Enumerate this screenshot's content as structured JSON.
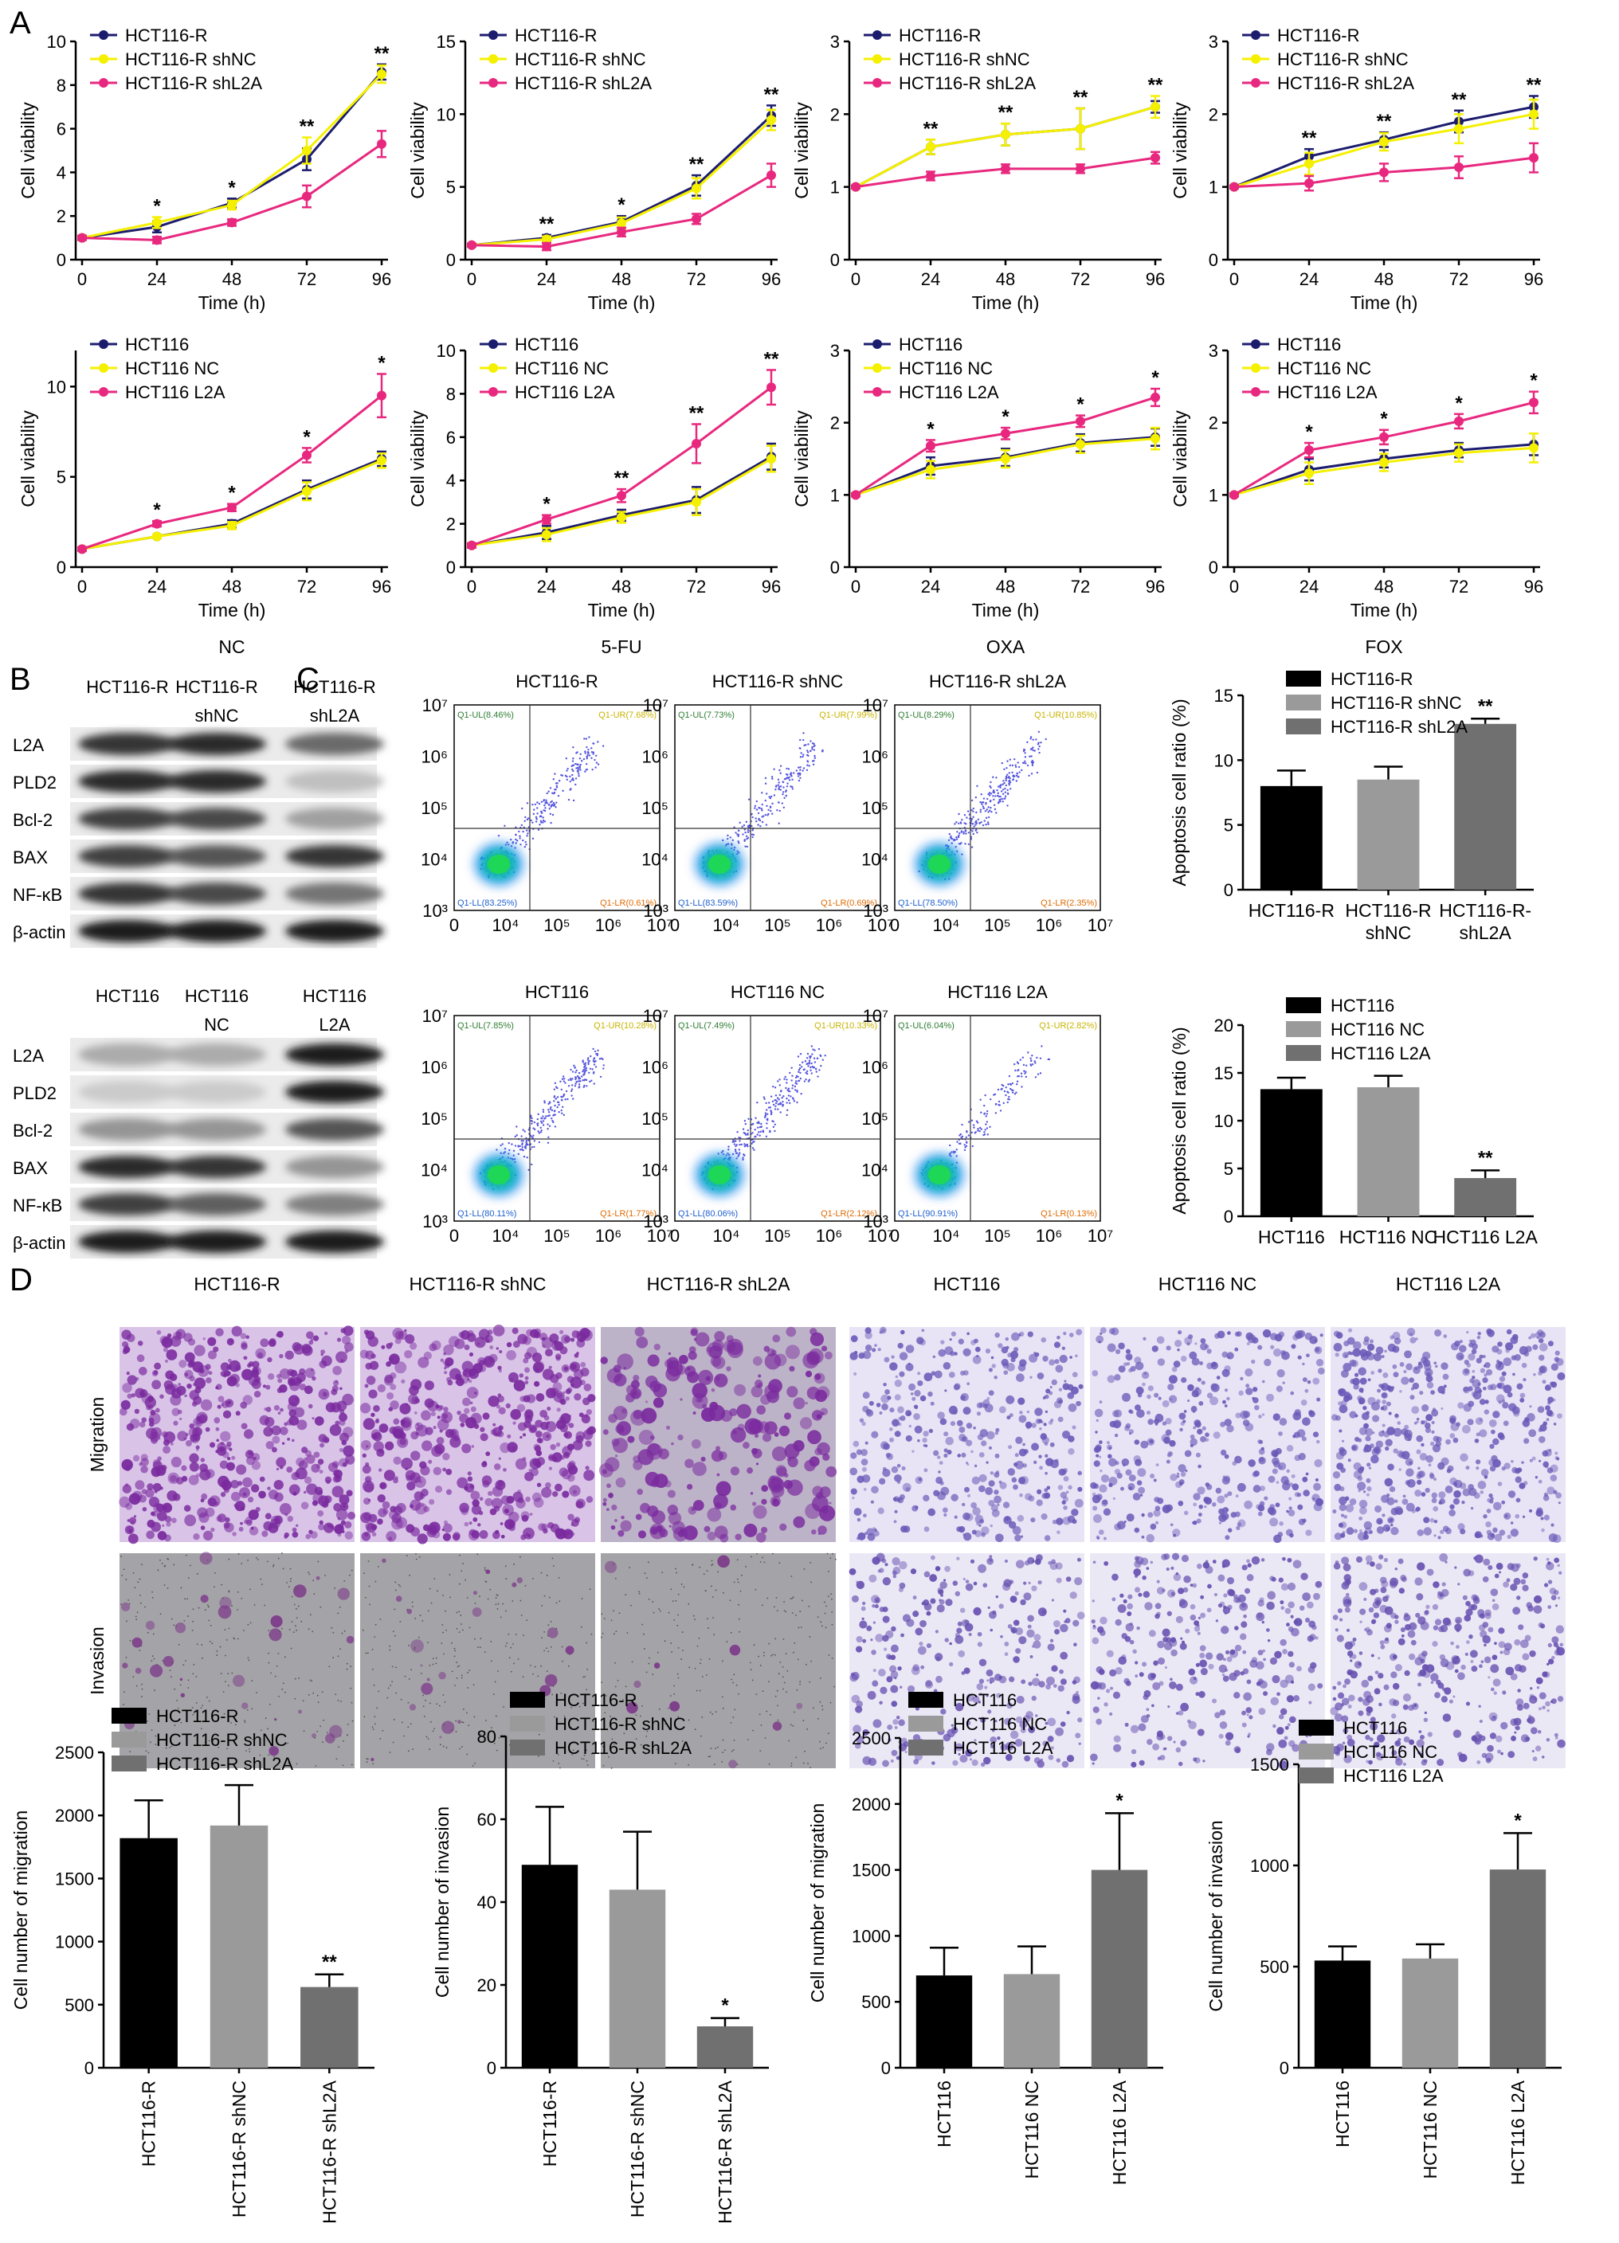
{
  "panel_labels": {
    "a": "A",
    "b": "B",
    "c": "C",
    "d": "D"
  },
  "colors": {
    "blue": "#1c1c6e",
    "yellow": "#f5f000",
    "pink": "#e8287f",
    "black": "#000000",
    "grey1": "#9a9a9a",
    "grey2": "#707070",
    "purple": "#7a3aa6",
    "lightpurple": "#a99bd8",
    "gray_bg": "#9a9a9a"
  },
  "chart_data": [
    {
      "id": "A1",
      "type": "line",
      "panel": "A",
      "xlabel": "Time (h)",
      "ylabel": "Cell viability",
      "ylim": [
        0,
        10
      ],
      "yticks": [
        0,
        2,
        4,
        6,
        8,
        10
      ],
      "x": [
        0,
        24,
        48,
        72,
        96
      ],
      "series": [
        {
          "name": "HCT116-R",
          "color": "blue",
          "values": [
            1,
            1.5,
            2.6,
            4.6,
            8.6
          ],
          "err": [
            0.1,
            0.25,
            0.2,
            0.5,
            0.35
          ]
        },
        {
          "name": "HCT116-R shNC",
          "color": "yellow",
          "values": [
            1,
            1.7,
            2.5,
            5.0,
            8.5
          ],
          "err": [
            0.1,
            0.25,
            0.2,
            0.6,
            0.4
          ]
        },
        {
          "name": "HCT116-R shL2A",
          "color": "pink",
          "values": [
            1,
            0.9,
            1.7,
            2.9,
            5.3
          ],
          "err": [
            0.1,
            0.15,
            0.15,
            0.5,
            0.6
          ]
        }
      ],
      "significance": [
        "*",
        "*",
        "**",
        "**"
      ]
    },
    {
      "id": "A2",
      "type": "line",
      "panel": "A",
      "xlabel": "Time (h)",
      "ylabel": "Cell viability",
      "ylim": [
        0,
        15
      ],
      "yticks": [
        0,
        5,
        10,
        15
      ],
      "x": [
        0,
        24,
        48,
        72,
        96
      ],
      "series": [
        {
          "name": "HCT116-R",
          "color": "blue",
          "values": [
            1,
            1.5,
            2.6,
            5.1,
            9.9
          ],
          "err": [
            0.1,
            0.2,
            0.4,
            0.7,
            0.7
          ]
        },
        {
          "name": "HCT116-R shNC",
          "color": "yellow",
          "values": [
            1,
            1.4,
            2.5,
            4.9,
            9.6
          ],
          "err": [
            0.1,
            0.2,
            0.4,
            0.7,
            0.7
          ]
        },
        {
          "name": "HCT116-R shL2A",
          "color": "pink",
          "values": [
            1,
            0.9,
            1.9,
            2.8,
            5.8
          ],
          "err": [
            0.1,
            0.25,
            0.3,
            0.35,
            0.8
          ]
        }
      ],
      "significance": [
        "**",
        "*",
        "**",
        "**"
      ]
    },
    {
      "id": "A3",
      "type": "line",
      "panel": "A",
      "xlabel": "Time (h)",
      "ylabel": "Cell viability",
      "ylim": [
        0,
        3
      ],
      "yticks": [
        0,
        1,
        2,
        3
      ],
      "x": [
        0,
        24,
        48,
        72,
        96
      ],
      "series": [
        {
          "name": "HCT116-R",
          "color": "blue",
          "values": [
            1,
            1.55,
            1.72,
            1.8,
            2.1
          ],
          "err": [
            0.02,
            0.1,
            0.15,
            0.28,
            0.08
          ]
        },
        {
          "name": "HCT116-R shNC",
          "color": "yellow",
          "values": [
            1,
            1.55,
            1.72,
            1.8,
            2.1
          ],
          "err": [
            0.02,
            0.1,
            0.15,
            0.28,
            0.15
          ]
        },
        {
          "name": "HCT116-R shL2A",
          "color": "pink",
          "values": [
            1,
            1.15,
            1.25,
            1.25,
            1.4
          ],
          "err": [
            0.02,
            0.06,
            0.06,
            0.06,
            0.08
          ]
        }
      ],
      "significance": [
        "**",
        "**",
        "**",
        "**"
      ]
    },
    {
      "id": "A4",
      "type": "line",
      "panel": "A",
      "xlabel": "Time (h)",
      "ylabel": "Cell viability",
      "ylim": [
        0,
        3
      ],
      "yticks": [
        0,
        1,
        2,
        3
      ],
      "x": [
        0,
        24,
        48,
        72,
        96
      ],
      "series": [
        {
          "name": "HCT116-R",
          "color": "blue",
          "values": [
            1,
            1.42,
            1.65,
            1.9,
            2.1
          ],
          "err": [
            0.02,
            0.1,
            0.1,
            0.15,
            0.15
          ]
        },
        {
          "name": "HCT116-R shNC",
          "color": "yellow",
          "values": [
            1,
            1.32,
            1.62,
            1.8,
            2.0
          ],
          "err": [
            0.02,
            0.15,
            0.12,
            0.2,
            0.2
          ]
        },
        {
          "name": "HCT116-R shL2A",
          "color": "pink",
          "values": [
            1,
            1.05,
            1.2,
            1.27,
            1.4
          ],
          "err": [
            0.02,
            0.1,
            0.12,
            0.15,
            0.2
          ]
        }
      ],
      "significance": [
        "**",
        "**",
        "**",
        "**"
      ]
    },
    {
      "id": "A5",
      "type": "line",
      "panel": "A",
      "xlabel": "Time (h)",
      "ylabel": "Cell viability",
      "ylim": [
        0,
        12
      ],
      "yticks": [
        0,
        5,
        10
      ],
      "x": [
        0,
        24,
        48,
        72,
        96
      ],
      "group_label": "NC",
      "series": [
        {
          "name": "HCT116",
          "color": "blue",
          "values": [
            1,
            1.7,
            2.4,
            4.3,
            6.0
          ],
          "err": [
            0.1,
            0.1,
            0.2,
            0.5,
            0.4
          ]
        },
        {
          "name": "HCT116 NC",
          "color": "yellow",
          "values": [
            1,
            1.7,
            2.3,
            4.2,
            5.9
          ],
          "err": [
            0.1,
            0.1,
            0.2,
            0.5,
            0.4
          ]
        },
        {
          "name": "HCT116 L2A",
          "color": "pink",
          "values": [
            1,
            2.4,
            3.3,
            6.2,
            9.5
          ],
          "err": [
            0.1,
            0.15,
            0.2,
            0.4,
            1.2
          ]
        }
      ],
      "significance": [
        "*",
        "*",
        "*",
        "*"
      ]
    },
    {
      "id": "A6",
      "type": "line",
      "panel": "A",
      "xlabel": "Time (h)",
      "ylabel": "Cell viability",
      "ylim": [
        0,
        10
      ],
      "yticks": [
        0,
        2,
        4,
        6,
        8,
        10
      ],
      "x": [
        0,
        24,
        48,
        72,
        96
      ],
      "group_label": "5-FU",
      "series": [
        {
          "name": "HCT116",
          "color": "blue",
          "values": [
            1,
            1.6,
            2.4,
            3.1,
            5.1
          ],
          "err": [
            0.1,
            0.3,
            0.25,
            0.6,
            0.6
          ]
        },
        {
          "name": "HCT116 NC",
          "color": "yellow",
          "values": [
            1,
            1.5,
            2.3,
            3.0,
            5.0
          ],
          "err": [
            0.1,
            0.3,
            0.25,
            0.6,
            0.6
          ]
        },
        {
          "name": "HCT116 L2A",
          "color": "pink",
          "values": [
            1,
            2.2,
            3.3,
            5.7,
            8.3
          ],
          "err": [
            0.1,
            0.2,
            0.3,
            0.9,
            0.8
          ]
        }
      ],
      "significance": [
        "*",
        "**",
        "**",
        "**"
      ]
    },
    {
      "id": "A7",
      "type": "line",
      "panel": "A",
      "xlabel": "Time (h)",
      "ylabel": "Cell viability",
      "ylim": [
        0,
        3
      ],
      "yticks": [
        0,
        1,
        2,
        3
      ],
      "x": [
        0,
        24,
        48,
        72,
        96
      ],
      "group_label": "OXA",
      "series": [
        {
          "name": "HCT116",
          "color": "blue",
          "values": [
            1,
            1.4,
            1.52,
            1.72,
            1.8
          ],
          "err": [
            0.02,
            0.12,
            0.12,
            0.12,
            0.12
          ]
        },
        {
          "name": "HCT116 NC",
          "color": "yellow",
          "values": [
            1,
            1.35,
            1.5,
            1.7,
            1.78
          ],
          "err": [
            0.02,
            0.12,
            0.12,
            0.12,
            0.15
          ]
        },
        {
          "name": "HCT116 L2A",
          "color": "pink",
          "values": [
            1,
            1.68,
            1.85,
            2.02,
            2.35
          ],
          "err": [
            0.02,
            0.08,
            0.08,
            0.08,
            0.12
          ]
        }
      ],
      "significance": [
        "*",
        "*",
        "*",
        "*"
      ]
    },
    {
      "id": "A8",
      "type": "line",
      "panel": "A",
      "xlabel": "Time (h)",
      "ylabel": "Cell viability",
      "ylim": [
        0,
        3
      ],
      "yticks": [
        0,
        1,
        2,
        3
      ],
      "x": [
        0,
        24,
        48,
        72,
        96
      ],
      "group_label": "FOX",
      "series": [
        {
          "name": "HCT116",
          "color": "blue",
          "values": [
            1,
            1.35,
            1.5,
            1.62,
            1.7
          ],
          "err": [
            0.02,
            0.15,
            0.12,
            0.1,
            0.15
          ]
        },
        {
          "name": "HCT116 NC",
          "color": "yellow",
          "values": [
            1,
            1.3,
            1.45,
            1.58,
            1.65
          ],
          "err": [
            0.02,
            0.15,
            0.12,
            0.12,
            0.2
          ]
        },
        {
          "name": "HCT116 L2A",
          "color": "pink",
          "values": [
            1,
            1.62,
            1.8,
            2.02,
            2.28
          ],
          "err": [
            0.02,
            0.1,
            0.1,
            0.1,
            0.15
          ]
        }
      ],
      "significance": [
        "*",
        "*",
        "*",
        "*"
      ]
    },
    {
      "id": "C1",
      "type": "bar",
      "panel": "C",
      "ylabel": "Apoptosis cell ratio (%)",
      "ylim": [
        0,
        15
      ],
      "yticks": [
        0,
        5,
        10,
        15
      ],
      "categories": [
        "HCT116-R",
        "HCT116-R\nshNC",
        "HCT116-R-\nshL2A"
      ],
      "legend": [
        "HCT116-R",
        "HCT116-R shNC",
        "HCT116-R shL2A"
      ],
      "values": [
        8.0,
        8.5,
        12.8
      ],
      "err": [
        1.2,
        1.0,
        0.4
      ],
      "colors": [
        "black",
        "grey1",
        "grey2"
      ],
      "significance": [
        "",
        "",
        "**"
      ]
    },
    {
      "id": "C2",
      "type": "bar",
      "panel": "C",
      "ylabel": "Apoptosis cell ratio (%)",
      "ylim": [
        0,
        20
      ],
      "yticks": [
        0,
        5,
        10,
        15,
        20
      ],
      "categories": [
        "HCT116",
        "HCT116 NC",
        "HCT116 L2A"
      ],
      "legend": [
        "HCT116",
        "HCT116 NC",
        "HCT116 L2A"
      ],
      "values": [
        13.3,
        13.5,
        4.0
      ],
      "err": [
        1.2,
        1.2,
        0.8
      ],
      "colors": [
        "black",
        "grey1",
        "grey2"
      ],
      "significance": [
        "",
        "",
        "**"
      ]
    },
    {
      "id": "D1",
      "type": "bar",
      "panel": "D",
      "ylabel": "Cell number of migration",
      "ylim": [
        0,
        2500
      ],
      "yticks": [
        0,
        500,
        1000,
        1500,
        2000,
        2500
      ],
      "categories": [
        "HCT116-R",
        "HCT116-R shNC",
        "HCT116-R shL2A"
      ],
      "legend": [
        "HCT116-R",
        "HCT116-R shNC",
        "HCT116-R shL2A"
      ],
      "values": [
        1820,
        1920,
        640
      ],
      "err": [
        300,
        320,
        100
      ],
      "colors": [
        "black",
        "grey1",
        "grey2"
      ],
      "significance": [
        "",
        "",
        "**"
      ]
    },
    {
      "id": "D2",
      "type": "bar",
      "panel": "D",
      "ylabel": "Cell number of invasion",
      "ylim": [
        0,
        80
      ],
      "yticks": [
        0,
        20,
        40,
        60,
        80
      ],
      "categories": [
        "HCT116-R",
        "HCT116-R shNC",
        "HCT116-R shL2A"
      ],
      "legend": [
        "HCT116-R",
        "HCT116-R shNC",
        "HCT116-R shL2A"
      ],
      "values": [
        49,
        43,
        10
      ],
      "err": [
        14,
        14,
        2
      ],
      "colors": [
        "black",
        "grey1",
        "grey2"
      ],
      "significance": [
        "",
        "",
        "*"
      ]
    },
    {
      "id": "D3",
      "type": "bar",
      "panel": "D",
      "ylabel": "Cell number of migration",
      "ylim": [
        0,
        2500
      ],
      "yticks": [
        0,
        500,
        1000,
        1500,
        2000,
        2500
      ],
      "categories": [
        "HCT116",
        "HCT116 NC",
        "HCT116 L2A"
      ],
      "legend": [
        "HCT116",
        "HCT116 NC",
        "HCT116 L2A"
      ],
      "values": [
        700,
        710,
        1500
      ],
      "err": [
        210,
        210,
        430
      ],
      "colors": [
        "black",
        "grey1",
        "grey2"
      ],
      "significance": [
        "",
        "",
        "*"
      ]
    },
    {
      "id": "D4",
      "type": "bar",
      "panel": "D",
      "ylabel": "Cell number of invasion",
      "ylim": [
        0,
        1500
      ],
      "yticks": [
        0,
        500,
        1000,
        1500
      ],
      "categories": [
        "HCT116",
        "HCT116 NC",
        "HCT116 L2A"
      ],
      "legend": [
        "HCT116",
        "HCT116 NC",
        "HCT116 L2A"
      ],
      "values": [
        530,
        540,
        980
      ],
      "err": [
        70,
        70,
        180
      ],
      "colors": [
        "black",
        "grey1",
        "grey2"
      ],
      "significance": [
        "",
        "",
        "*"
      ]
    }
  ],
  "flow": {
    "xticks": [
      "0",
      "10⁴",
      "10⁵",
      "10⁶",
      "10⁷"
    ],
    "yticks": [
      "10³",
      "10⁴",
      "10⁵",
      "10⁶",
      "10⁷"
    ],
    "plots": [
      {
        "title": "HCT116-R",
        "ul": "Q1-UL(8.46%)",
        "ur": "Q1-UR(7.68%)",
        "ll": "Q1-LL(83.25%)",
        "lr": "Q1-LR(0.61%)",
        "spread": 0.5
      },
      {
        "title": "HCT116-R shNC",
        "ul": "Q1-UL(7.73%)",
        "ur": "Q1-UR(7.99%)",
        "ll": "Q1-LL(83.59%)",
        "lr": "Q1-LR(0.69%)",
        "spread": 0.5
      },
      {
        "title": "HCT116-R shL2A",
        "ul": "Q1-UL(8.29%)",
        "ur": "Q1-UR(10.85%)",
        "ll": "Q1-LL(78.50%)",
        "lr": "Q1-LR(2.35%)",
        "spread": 0.7
      },
      {
        "title": "HCT116",
        "ul": "Q1-UL(7.85%)",
        "ur": "Q1-UR(10.28%)",
        "ll": "Q1-LL(80.11%)",
        "lr": "Q1-LR(1.77%)",
        "spread": 0.7
      },
      {
        "title": "HCT116 NC",
        "ul": "Q1-UL(7.49%)",
        "ur": "Q1-UR(10.33%)",
        "ll": "Q1-LL(80.06%)",
        "lr": "Q1-LR(2.12%)",
        "spread": 0.7
      },
      {
        "title": "HCT116 L2A",
        "ul": "Q1-UL(6.04%)",
        "ur": "Q1-UR(2.82%)",
        "ll": "Q1-LL(90.91%)",
        "lr": "Q1-LR(0.13%)",
        "spread": 0.25
      }
    ]
  },
  "western": {
    "top_headers": [
      "HCT116-R",
      "HCT116-R",
      "HCT116-R"
    ],
    "top_sub": [
      "",
      "shNC",
      "shL2A"
    ],
    "bottom_headers": [
      "HCT116",
      "HCT116",
      "HCT116"
    ],
    "bottom_sub": [
      "",
      "NC",
      "L2A"
    ],
    "rows": [
      "L2A",
      "PLD2",
      "Bcl-2",
      "BAX",
      "NF-κB",
      "β-actin"
    ],
    "top_intensity": [
      [
        0.85,
        0.9,
        0.6
      ],
      [
        0.9,
        0.9,
        0.2
      ],
      [
        0.8,
        0.75,
        0.35
      ],
      [
        0.8,
        0.7,
        0.85
      ],
      [
        0.85,
        0.75,
        0.55
      ],
      [
        0.95,
        0.95,
        0.95
      ]
    ],
    "bottom_intensity": [
      [
        0.3,
        0.3,
        0.95
      ],
      [
        0.15,
        0.15,
        0.95
      ],
      [
        0.4,
        0.4,
        0.7
      ],
      [
        0.9,
        0.85,
        0.4
      ],
      [
        0.8,
        0.65,
        0.5
      ],
      [
        0.95,
        0.95,
        0.95
      ]
    ]
  },
  "micro": {
    "columns": [
      "HCT116-R",
      "HCT116-R shNC",
      "HCT116-R shL2A",
      "HCT116",
      "HCT116 NC",
      "HCT116 L2A"
    ],
    "rows": [
      "Migration",
      "Invasion"
    ]
  }
}
